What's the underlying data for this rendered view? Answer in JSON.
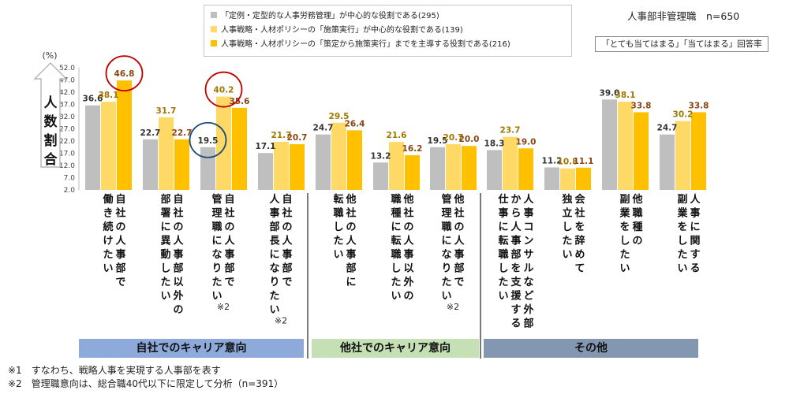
{
  "header": {
    "title": "人事部非管理職　n=650",
    "note": "「とても当てはまる」「当てはまる」回答率"
  },
  "legend": [
    {
      "label": "「定例・定型的な人事労務管理」が中心的な役割である(295)",
      "color": "#bfbfbf"
    },
    {
      "label": "人事戦略・人材ポリシーの「施策実行」が中心的な役割である(139)",
      "color": "#ffd966"
    },
    {
      "label": "人事戦略・人材ポリシーの「策定から施策実行」までを主導する役割である(216)",
      "color": "#ffc000"
    }
  ],
  "groups": [
    {
      "label": "自社でのキャリア意向",
      "color": "#8eaadb"
    },
    {
      "label": "他社でのキャリア意向",
      "color": "#c5e0b4"
    },
    {
      "label": "その他",
      "color": "#8497b0"
    }
  ],
  "footnotes": [
    "※1　すなわち、戦略人事を実現する人事部を表す",
    "※2　管理職意向は、総合職40代以下に限定して分析（n=391）"
  ],
  "chart_data": {
    "type": "bar",
    "ylabel": "人数割合",
    "yunit": "(%)",
    "ylim": [
      2,
      52
    ],
    "yticks": [
      "52.0",
      "47.0",
      "42.0",
      "37.0",
      "32.0",
      "27.0",
      "22.0",
      "17.0",
      "12.0",
      "7.0",
      "2.0"
    ],
    "grid": false,
    "legend_position": "top",
    "categories": [
      "自社の人事部で働き続けたい",
      "自社の人事部以外の部署に異動したい",
      "自社の人事部で管理職になりたい※2",
      "自社の人事部で人事部長になりたい※2",
      "他社の人事部に転職したい",
      "他社の人事以外の職種に転職したい",
      "他社の人事部で管理職になりたい※2",
      "人事コンサルなど外部から人事部を支援する仕事に転職したい",
      "会社を辞めて独立したい",
      "他職種の副業をしたい",
      "人事に関する副業をしたい"
    ],
    "series": [
      {
        "name": "「定例・定型的な人事労務管理」が中心的な役割である(295)",
        "values": [
          36.6,
          22.7,
          19.5,
          17.1,
          24.7,
          13.2,
          19.5,
          18.3,
          11.2,
          39.0,
          24.7
        ]
      },
      {
        "name": "人事戦略・人材ポリシーの「施策実行」が中心的な役割である(139)",
        "values": [
          38.1,
          31.7,
          40.2,
          21.7,
          29.5,
          21.6,
          20.7,
          23.7,
          10.8,
          38.1,
          30.2
        ]
      },
      {
        "name": "人事戦略・人材ポリシーの「策定から施策実行」までを主導する役割である(216)",
        "values": [
          46.8,
          22.7,
          35.6,
          20.7,
          26.4,
          16.2,
          20.0,
          19.0,
          11.1,
          33.8,
          33.8
        ]
      }
    ],
    "value_labels": [
      [
        "36.6",
        "22.7",
        "19.5",
        "17.1",
        "24.7",
        "13.2",
        "19.5",
        "18.3",
        "11.2",
        "39.0",
        "24.7"
      ],
      [
        "38.1",
        "31.7",
        "40.2",
        "21.7",
        "29.5",
        "21.6",
        "20.7",
        "23.7",
        "10.8",
        "38.1",
        "30.2"
      ],
      [
        "46.8",
        "22.7",
        "35.6",
        "20.7",
        "26.4",
        "16.2",
        "20.0",
        "19.0",
        "11.1",
        "33.8",
        "33.8"
      ]
    ],
    "category_lines": [
      [
        "働き続けたい",
        "自社の人事部で"
      ],
      [
        "部署に異動したい",
        "自社の人事部以外の"
      ],
      [
        "管理職になりたい",
        "自社の人事部で",
        "※2"
      ],
      [
        "人事部長になりたい",
        "自社の人事部で",
        "※2"
      ],
      [
        "転職したい",
        "他社の人事部に"
      ],
      [
        "職種に転職したい",
        "他社の人事以外の"
      ],
      [
        "管理職になりたい",
        "他社の人事部で",
        "※2"
      ],
      [
        "仕事に転職したい",
        "から人事部を支援する",
        "人事コンサルなど外部"
      ],
      [
        "独立したい",
        "会社を辞めて"
      ],
      [
        "副業をしたい",
        "他職種の"
      ],
      [
        "副業をしたい",
        "人事に関する"
      ]
    ],
    "highlights": [
      {
        "category": 0,
        "series": 2,
        "color": "#c00000"
      },
      {
        "category": 2,
        "series": 1,
        "color": "#c00000"
      },
      {
        "category": 2,
        "series": 0,
        "color": "#1f4e79"
      }
    ]
  }
}
